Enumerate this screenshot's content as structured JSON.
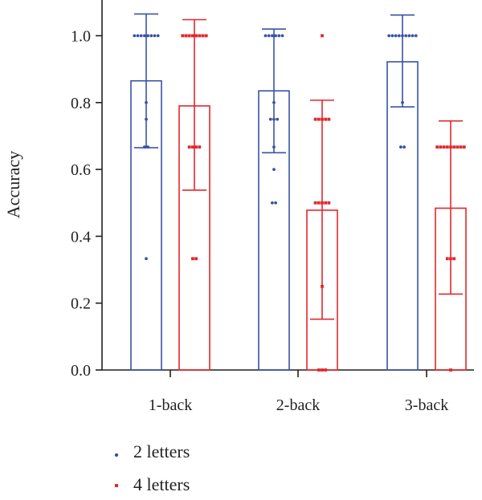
{
  "chart_data": {
    "type": "bar",
    "ylabel": "Accuracy",
    "xlabel": "",
    "title": "",
    "ylim": [
      0,
      1.1
    ],
    "y_ticks": [
      "0.0",
      "0.2",
      "0.4",
      "0.6",
      "0.8",
      "1.0"
    ],
    "categories": [
      "1-back",
      "2-back",
      "3-back"
    ],
    "legend_position": "bottom-left",
    "series": [
      {
        "name": "2 letters",
        "color": "#3953a4",
        "marker": "dot",
        "values": [
          0.865,
          0.835,
          0.922
        ],
        "error_low": [
          0.665,
          0.65,
          0.787
        ],
        "error_high": [
          1.065,
          1.02,
          1.062
        ],
        "points": [
          [
            1.0,
            1.0,
            1.0,
            1.0,
            1.0,
            1.0,
            1.0,
            1.0,
            0.8,
            0.75,
            0.667,
            0.667,
            0.333
          ],
          [
            1.0,
            1.0,
            1.0,
            1.0,
            1.0,
            1.0,
            0.8,
            0.75,
            0.75,
            0.75,
            0.667,
            0.6,
            0.5,
            0.5
          ],
          [
            1.0,
            1.0,
            1.0,
            1.0,
            1.0,
            1.0,
            1.0,
            1.0,
            1.0,
            0.8,
            0.667,
            0.667
          ]
        ]
      },
      {
        "name": "4 letters",
        "color": "#e1282d",
        "marker": "square",
        "values": [
          0.79,
          0.478,
          0.484
        ],
        "error_low": [
          0.538,
          0.152,
          0.227
        ],
        "error_high": [
          1.048,
          0.807,
          0.745
        ],
        "points": [
          [
            1.0,
            1.0,
            1.0,
            1.0,
            1.0,
            1.0,
            1.0,
            1.0,
            0.667,
            0.667,
            0.667,
            0.667,
            0.333,
            0.333
          ],
          [
            1.0,
            0.75,
            0.75,
            0.75,
            0.75,
            0.75,
            0.5,
            0.5,
            0.5,
            0.5,
            0.5,
            0.25,
            0.0,
            0.0,
            0.0
          ],
          [
            0.667,
            0.667,
            0.667,
            0.667,
            0.667,
            0.667,
            0.667,
            0.667,
            0.667,
            0.333,
            0.333,
            0.333,
            0.0
          ]
        ]
      }
    ]
  }
}
